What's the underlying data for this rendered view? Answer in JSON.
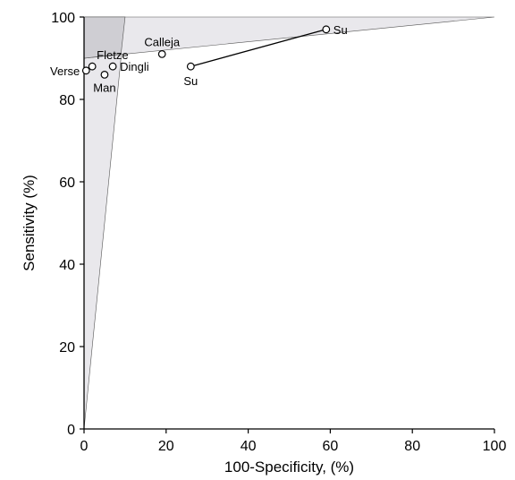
{
  "chart_data": {
    "type": "scatter",
    "title": "",
    "xlabel": "100-Specificity, (%)",
    "ylabel": "Sensitivity (%)",
    "xlim": [
      0,
      100
    ],
    "ylim": [
      0,
      100
    ],
    "xticks": [
      "0",
      "20",
      "40",
      "60",
      "80",
      "100"
    ],
    "yticks": [
      "0",
      "20",
      "40",
      "60",
      "80",
      "100"
    ],
    "grid": false,
    "legend": "none",
    "points": [
      {
        "label": "Verse",
        "x": 0.5,
        "y": 87
      },
      {
        "label": "Fletze",
        "x": 2,
        "y": 88
      },
      {
        "label": "Man",
        "x": 5,
        "y": 86
      },
      {
        "label": "Dingli",
        "x": 7,
        "y": 88
      },
      {
        "label": "Calleja",
        "x": 19,
        "y": 91
      },
      {
        "label": "Su",
        "x": 26,
        "y": 88
      },
      {
        "label": "Su",
        "x": 59,
        "y": 97
      }
    ],
    "connected_pairs": [
      [
        5,
        6
      ]
    ],
    "shaded_regions": [
      {
        "name": "light-shaded-region",
        "polygon": [
          [
            0,
            0
          ],
          [
            10,
            100
          ],
          [
            0,
            100
          ]
        ],
        "color": "#e9e8ec"
      },
      {
        "name": "light-shaded-region",
        "polygon": [
          [
            0,
            90
          ],
          [
            0,
            100
          ],
          [
            100,
            100
          ]
        ],
        "color": "#e9e8ec"
      },
      {
        "name": "dark-shaded-region",
        "polygon": [
          [
            0,
            90
          ],
          [
            0,
            100
          ],
          [
            10,
            100
          ],
          [
            9,
            91
          ]
        ],
        "color": "#cfced3"
      }
    ]
  }
}
